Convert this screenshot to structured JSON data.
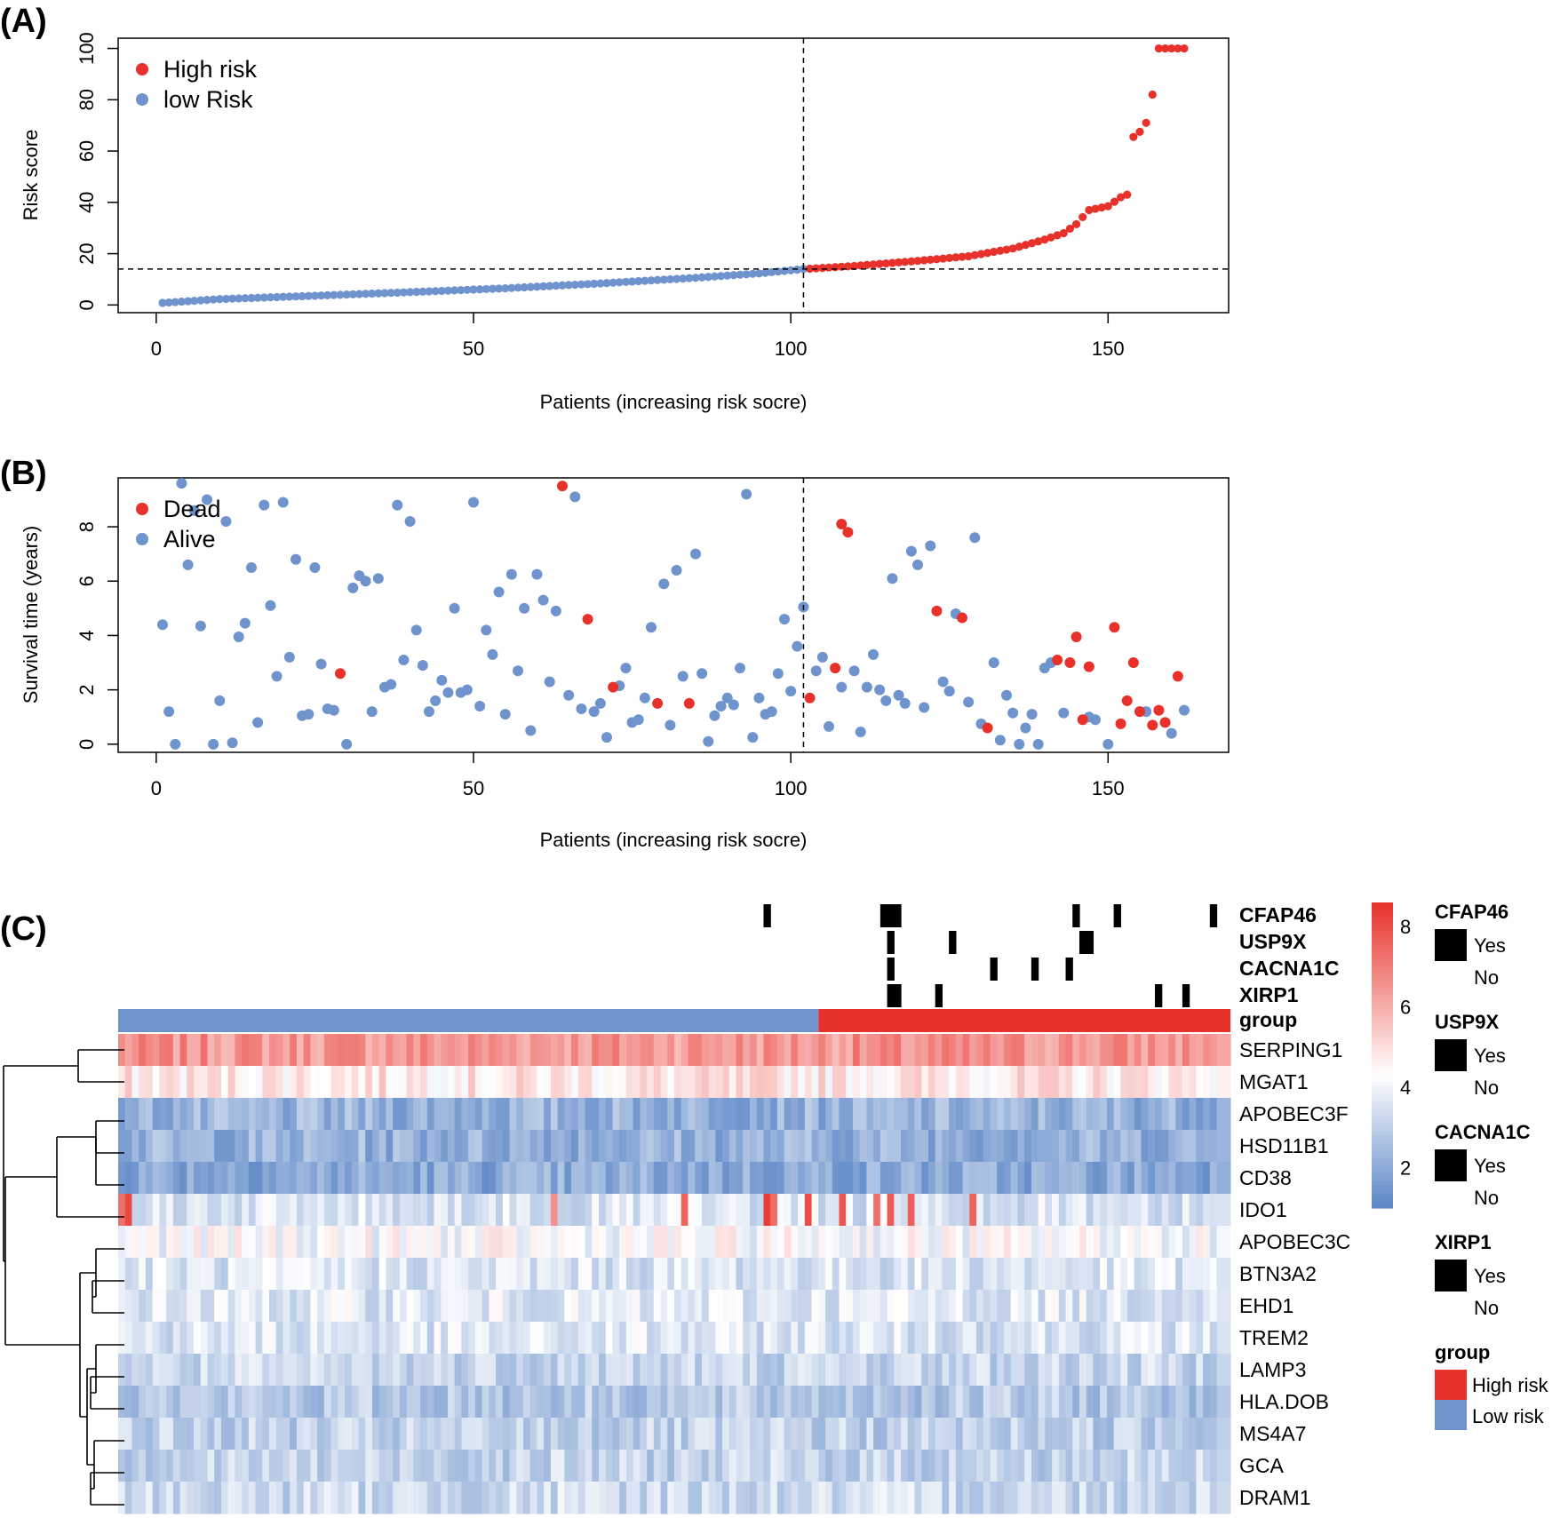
{
  "colors": {
    "high": "#e8312a",
    "low": "#6f93cd",
    "dead": "#e8312a",
    "alive": "#6f93cd",
    "heat_high": "#e8312a",
    "heat_mid": "#ffffff",
    "heat_low": "#5b86c6",
    "mutation": "#000000"
  },
  "chart_data": [
    {
      "id": "A",
      "panel_label": "(A)",
      "type": "scatter",
      "xlabel": "Patients (increasing risk socre)",
      "ylabel": "Risk score",
      "xlim": [
        -6,
        169
      ],
      "ylim": [
        -3,
        104
      ],
      "x_ticks": [
        0,
        50,
        100,
        150
      ],
      "y_ticks": [
        0,
        20,
        40,
        60,
        80,
        100
      ],
      "cutoff_x": 102,
      "cutoff_y": 14,
      "legend": [
        {
          "label": "High risk",
          "color": "#e8312a"
        },
        {
          "label": "low Risk",
          "color": "#6f93cd"
        }
      ],
      "n_patients": 162,
      "risk_score_anchors": [
        [
          1,
          0.8
        ],
        [
          10,
          2.3
        ],
        [
          25,
          3.6
        ],
        [
          40,
          5.0
        ],
        [
          55,
          6.5
        ],
        [
          70,
          8.4
        ],
        [
          85,
          10.6
        ],
        [
          95,
          12.3
        ],
        [
          102,
          14.0
        ],
        [
          110,
          15.2
        ],
        [
          120,
          17.2
        ],
        [
          128,
          19.0
        ],
        [
          135,
          22.0
        ],
        [
          140,
          25.5
        ],
        [
          143,
          28.0
        ],
        [
          145,
          31.5
        ],
        [
          147,
          37.0
        ],
        [
          150,
          38.5
        ],
        [
          152,
          42.0
        ],
        [
          153,
          43.0
        ],
        [
          154,
          65.5
        ],
        [
          155,
          67.5
        ],
        [
          156,
          71.0
        ],
        [
          157,
          82.0
        ],
        [
          158,
          100.0
        ],
        [
          162,
          100.0
        ]
      ]
    },
    {
      "id": "B",
      "panel_label": "(B)",
      "type": "scatter",
      "xlabel": "Patients (increasing risk socre)",
      "ylabel": "Survival time (years)",
      "xlim": [
        -6,
        169
      ],
      "ylim": [
        -0.3,
        9.8
      ],
      "x_ticks": [
        0,
        50,
        100,
        150
      ],
      "y_ticks": [
        0,
        2,
        4,
        6,
        8
      ],
      "cutoff_x": 102,
      "legend": [
        {
          "label": "Dead",
          "color": "#e8312a"
        },
        {
          "label": "Alive",
          "color": "#6f93cd"
        }
      ],
      "alive": [
        [
          1,
          4.4
        ],
        [
          2,
          1.2
        ],
        [
          3,
          0.0
        ],
        [
          4,
          9.6
        ],
        [
          5,
          6.6
        ],
        [
          6,
          8.6
        ],
        [
          7,
          4.35
        ],
        [
          8,
          9.0
        ],
        [
          9,
          0.0
        ],
        [
          10,
          1.6
        ],
        [
          11,
          8.2
        ],
        [
          12,
          0.05
        ],
        [
          13,
          3.95
        ],
        [
          14,
          4.45
        ],
        [
          15,
          6.5
        ],
        [
          16,
          0.8
        ],
        [
          17,
          8.8
        ],
        [
          18,
          5.1
        ],
        [
          19,
          2.5
        ],
        [
          20,
          8.9
        ],
        [
          21,
          3.2
        ],
        [
          22,
          6.8
        ],
        [
          23,
          1.05
        ],
        [
          24,
          1.1
        ],
        [
          25,
          6.5
        ],
        [
          26,
          2.95
        ],
        [
          27,
          1.3
        ],
        [
          28,
          1.25
        ],
        [
          30,
          0.0
        ],
        [
          31,
          5.75
        ],
        [
          32,
          6.2
        ],
        [
          33,
          6.0
        ],
        [
          34,
          1.2
        ],
        [
          35,
          6.1
        ],
        [
          36,
          2.1
        ],
        [
          37,
          2.2
        ],
        [
          38,
          8.8
        ],
        [
          39,
          3.1
        ],
        [
          40,
          8.2
        ],
        [
          41,
          4.2
        ],
        [
          42,
          2.9
        ],
        [
          43,
          1.2
        ],
        [
          44,
          1.6
        ],
        [
          45,
          2.35
        ],
        [
          46,
          1.9
        ],
        [
          47,
          5.0
        ],
        [
          48,
          1.9
        ],
        [
          49,
          2.0
        ],
        [
          50,
          8.9
        ],
        [
          51,
          1.4
        ],
        [
          52,
          4.2
        ],
        [
          53,
          3.3
        ],
        [
          54,
          5.6
        ],
        [
          55,
          1.1
        ],
        [
          56,
          6.25
        ],
        [
          57,
          2.7
        ],
        [
          58,
          5.0
        ],
        [
          59,
          0.5
        ],
        [
          60,
          6.25
        ],
        [
          61,
          5.3
        ],
        [
          62,
          2.3
        ],
        [
          63,
          4.9
        ],
        [
          65,
          1.8
        ],
        [
          66,
          9.1
        ],
        [
          67,
          1.3
        ],
        [
          69,
          1.2
        ],
        [
          70,
          1.5
        ],
        [
          71,
          0.25
        ],
        [
          73,
          2.15
        ],
        [
          74,
          2.8
        ],
        [
          75,
          0.8
        ],
        [
          76,
          0.9
        ],
        [
          77,
          1.7
        ],
        [
          78,
          4.3
        ],
        [
          80,
          5.9
        ],
        [
          81,
          0.7
        ],
        [
          82,
          6.4
        ],
        [
          83,
          2.5
        ],
        [
          85,
          7.0
        ],
        [
          86,
          2.6
        ],
        [
          87,
          0.1
        ],
        [
          88,
          1.05
        ],
        [
          89,
          1.4
        ],
        [
          90,
          1.7
        ],
        [
          91,
          1.45
        ],
        [
          92,
          2.8
        ],
        [
          93,
          9.2
        ],
        [
          94,
          0.25
        ],
        [
          95,
          1.7
        ],
        [
          96,
          1.1
        ],
        [
          97,
          1.2
        ],
        [
          98,
          2.6
        ],
        [
          99,
          4.6
        ],
        [
          100,
          1.95
        ],
        [
          101,
          3.6
        ],
        [
          102,
          5.05
        ],
        [
          104,
          2.7
        ],
        [
          105,
          3.2
        ],
        [
          106,
          0.65
        ],
        [
          108,
          2.1
        ],
        [
          110,
          2.7
        ],
        [
          111,
          0.45
        ],
        [
          112,
          2.1
        ],
        [
          113,
          3.3
        ],
        [
          114,
          2.0
        ],
        [
          115,
          1.6
        ],
        [
          116,
          6.1
        ],
        [
          117,
          1.8
        ],
        [
          118,
          1.5
        ],
        [
          119,
          7.1
        ],
        [
          120,
          6.6
        ],
        [
          121,
          1.35
        ],
        [
          122,
          7.3
        ],
        [
          124,
          2.3
        ],
        [
          125,
          1.95
        ],
        [
          126,
          4.8
        ],
        [
          128,
          1.55
        ],
        [
          129,
          7.6
        ],
        [
          130,
          0.75
        ],
        [
          132,
          3.0
        ],
        [
          133,
          0.15
        ],
        [
          134,
          1.8
        ],
        [
          135,
          1.15
        ],
        [
          136,
          0.0
        ],
        [
          137,
          0.6
        ],
        [
          138,
          1.1
        ],
        [
          139,
          0.0
        ],
        [
          140,
          2.8
        ],
        [
          141,
          3.0
        ],
        [
          143,
          1.15
        ],
        [
          147,
          1.0
        ],
        [
          148,
          0.9
        ],
        [
          150,
          0.0
        ],
        [
          156,
          1.2
        ],
        [
          160,
          0.4
        ],
        [
          162,
          1.25
        ]
      ],
      "dead": [
        [
          29,
          2.6
        ],
        [
          64,
          9.5
        ],
        [
          68,
          4.6
        ],
        [
          72,
          2.1
        ],
        [
          79,
          1.5
        ],
        [
          84,
          1.5
        ],
        [
          103,
          1.7
        ],
        [
          107,
          2.8
        ],
        [
          108,
          8.1
        ],
        [
          109,
          7.8
        ],
        [
          123,
          4.9
        ],
        [
          127,
          4.65
        ],
        [
          131,
          0.6
        ],
        [
          142,
          3.1
        ],
        [
          144,
          3.0
        ],
        [
          145,
          3.95
        ],
        [
          146,
          0.9
        ],
        [
          147,
          2.85
        ],
        [
          151,
          4.3
        ],
        [
          152,
          0.75
        ],
        [
          153,
          1.6
        ],
        [
          154,
          3.0
        ],
        [
          155,
          1.2
        ],
        [
          157,
          0.7
        ],
        [
          158,
          1.25
        ],
        [
          159,
          0.8
        ],
        [
          161,
          2.5
        ]
      ]
    },
    {
      "id": "C",
      "panel_label": "(C)",
      "type": "heatmap",
      "n_columns": 162,
      "high_risk_start": 103,
      "genes": [
        "SERPING1",
        "MGAT1",
        "APOBEC3F",
        "HSD11B1",
        "CD38",
        "IDO1",
        "APOBEC3C",
        "BTN3A2",
        "EHD1",
        "TREM2",
        "LAMP3",
        "HLA.DOB",
        "MS4A7",
        "GCA",
        "DRAM1"
      ],
      "gene_means": [
        6.5,
        4.8,
        2.2,
        2.2,
        2.0,
        3.6,
        4.2,
        3.6,
        3.7,
        3.6,
        3.2,
        2.8,
        3.0,
        3.1,
        3.3
      ],
      "colorbar_ticks": [
        2,
        4,
        6,
        8
      ],
      "colorbar_range": [
        1.0,
        8.6
      ],
      "annotations": [
        {
          "name": "CFAP46",
          "mutated_columns": [
            95,
            112,
            113,
            114,
            140,
            146,
            160
          ]
        },
        {
          "name": "USP9X",
          "mutated_columns": [
            113,
            122,
            141,
            142
          ]
        },
        {
          "name": "CACNA1C",
          "mutated_columns": [
            113,
            128,
            134,
            139
          ]
        },
        {
          "name": "XIRP1",
          "mutated_columns": [
            113,
            114,
            120,
            152,
            156
          ]
        },
        {
          "name": "group"
        }
      ],
      "legends": [
        {
          "title": "CFAP46",
          "items": [
            "Yes",
            "No"
          ]
        },
        {
          "title": "USP9X",
          "items": [
            "Yes",
            "No"
          ]
        },
        {
          "title": "CACNA1C",
          "items": [
            "Yes",
            "No"
          ]
        },
        {
          "title": "XIRP1",
          "items": [
            "Yes",
            "No"
          ]
        },
        {
          "title": "group",
          "items": [
            "High risk",
            "Low risk"
          ]
        }
      ]
    }
  ]
}
